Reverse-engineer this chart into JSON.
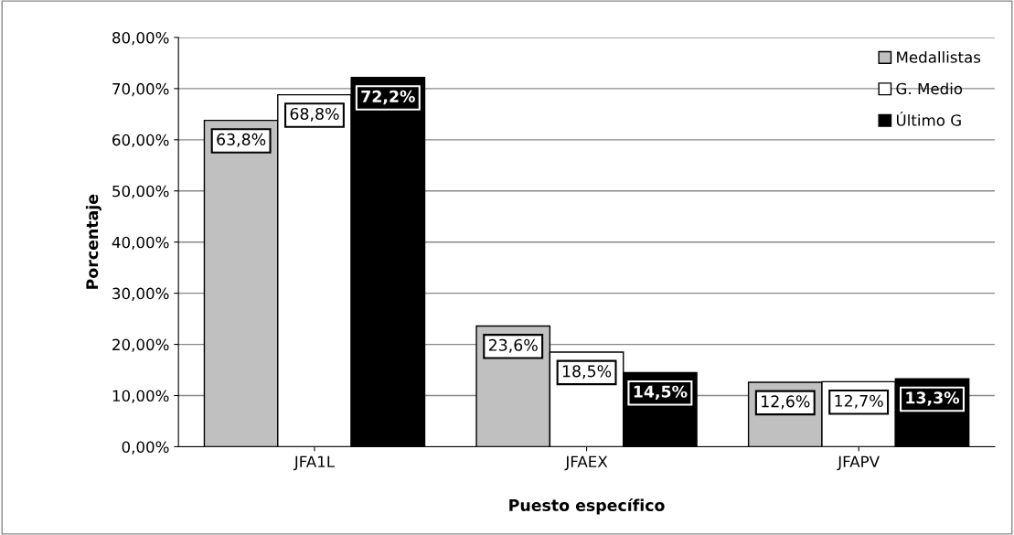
{
  "chart_data": {
    "type": "bar",
    "xlabel": "Puesto específico",
    "ylabel": "Porcentaje",
    "categories": [
      "JFA1L",
      "JFAEX",
      "JFAPV"
    ],
    "series": [
      {
        "name": "Medallistas",
        "color": "#c0c0c0",
        "values": [
          63.8,
          23.6,
          12.6
        ],
        "value_labels": [
          "63,8%",
          "23,6%",
          "12,6%"
        ]
      },
      {
        "name": "G. Medio",
        "color": "#ffffff",
        "values": [
          68.8,
          18.5,
          12.7
        ],
        "value_labels": [
          "68,8%",
          "18,5%",
          "12,7%"
        ]
      },
      {
        "name": "Último G",
        "color": "#000000",
        "values": [
          72.2,
          14.5,
          13.3
        ],
        "value_labels": [
          "72,2%",
          "14,5%",
          "13,3%"
        ]
      }
    ],
    "ylim": [
      0,
      80
    ],
    "yticks": [
      {
        "value": 0,
        "label": "0,00%"
      },
      {
        "value": 10,
        "label": "10,00%"
      },
      {
        "value": 20,
        "label": "20,00%"
      },
      {
        "value": 30,
        "label": "30,00%"
      },
      {
        "value": 40,
        "label": "40,00%"
      },
      {
        "value": 50,
        "label": "50,00%"
      },
      {
        "value": 60,
        "label": "60,00%"
      },
      {
        "value": 70,
        "label": "70,00%"
      },
      {
        "value": 80,
        "label": "80,00%"
      }
    ],
    "grid": "y",
    "legend": "top right"
  }
}
